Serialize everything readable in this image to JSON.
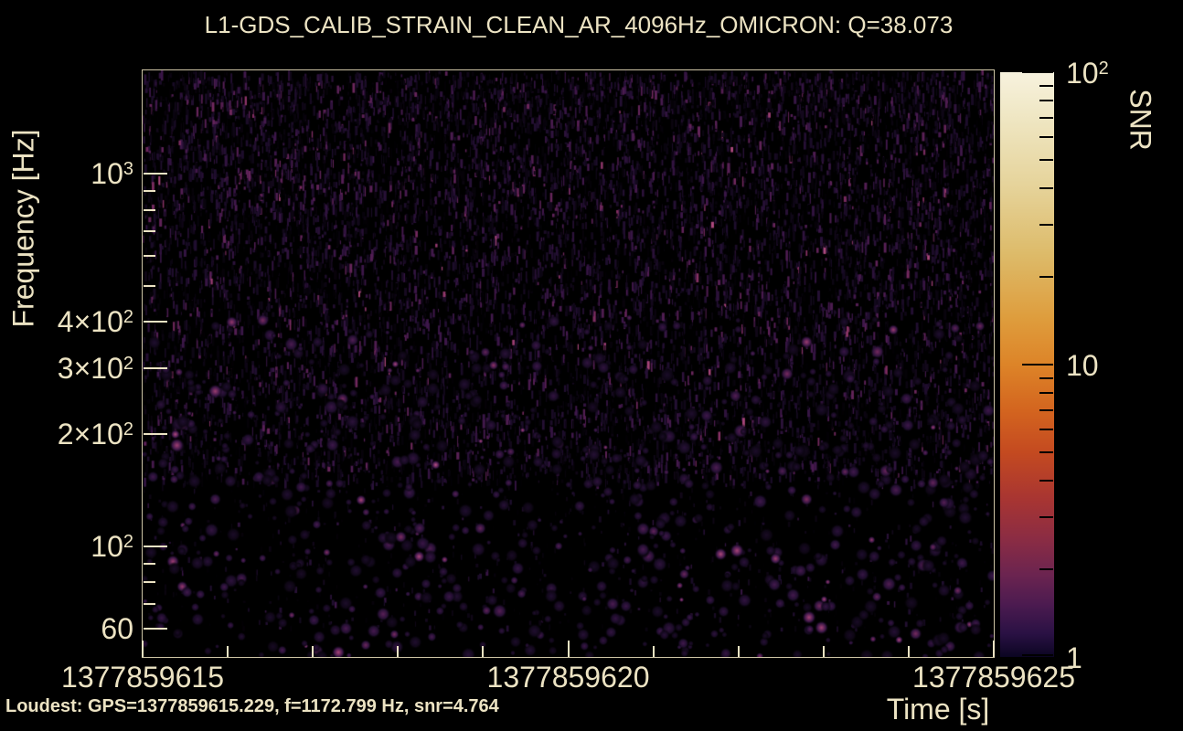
{
  "chart_data": {
    "type": "heatmap",
    "subtype": "omicron-qscan-spectrogram",
    "title": "L1-GDS_CALIB_STRAIN_CLEAN_AR_4096Hz_OMICRON: Q=38.073",
    "xlabel": "Time [s]",
    "ylabel": "Frequency [Hz]",
    "colorbar_label": "SNR",
    "x_range_gps": [
      1377859615,
      1377859625
    ],
    "x_major_ticks": [
      1377859615,
      1377859620,
      1377859625
    ],
    "x_tick_labels": [
      "1377859615",
      "1377859620",
      "1377859625"
    ],
    "x_minor_ticks": [
      1377859616,
      1377859617,
      1377859618,
      1377859619,
      1377859621,
      1377859622,
      1377859623,
      1377859624
    ],
    "y_scale": "log",
    "y_range_hz": [
      50.5,
      1892
    ],
    "y_tick_labels": [
      {
        "value": 1000,
        "pre": "",
        "base": "10",
        "exp": "3"
      },
      {
        "value": 400,
        "pre": "4×",
        "base": "10",
        "exp": "2"
      },
      {
        "value": 300,
        "pre": "3×",
        "base": "10",
        "exp": "2"
      },
      {
        "value": 200,
        "pre": "2×",
        "base": "10",
        "exp": "2"
      },
      {
        "value": 100,
        "pre": "",
        "base": "10",
        "exp": "2"
      },
      {
        "value": 60,
        "text": "60"
      }
    ],
    "y_minor_ticks_hz": [
      70,
      80,
      90,
      500,
      600,
      700,
      800,
      900
    ],
    "snr_scale": "log",
    "snr_range": [
      1,
      100
    ],
    "colorbar_major_ticks": [
      1,
      10,
      100
    ],
    "colorbar_minor_ticks": [
      2,
      3,
      4,
      5,
      6,
      7,
      8,
      9,
      20,
      30,
      40,
      50,
      60,
      70,
      80,
      90
    ],
    "colorbar_tick_labels": [
      {
        "value": 100,
        "pre": "",
        "base": "10",
        "exp": "2"
      },
      {
        "value": 10,
        "text": "10"
      },
      {
        "value": 1,
        "text": "1"
      }
    ],
    "loudest_annotation": "Loudest: GPS=1377859615.229, f=1172.799 Hz, snr=4.764",
    "loudest": {
      "gps": 1377859615.229,
      "frequency_hz": 1172.799,
      "snr": 4.764
    },
    "colors": {
      "background": "#000000",
      "text": "#ece3c3",
      "axis_tick": "#ece3c3",
      "colorbar_tick": "#000000"
    },
    "colormap_stops": [
      {
        "pos": 0.0,
        "color": "#0b0522"
      },
      {
        "pos": 0.04,
        "color": "#2a1144"
      },
      {
        "pos": 0.09,
        "color": "#4c1b50"
      },
      {
        "pos": 0.14,
        "color": "#6b2450"
      },
      {
        "pos": 0.2,
        "color": "#8a2c44"
      },
      {
        "pos": 0.27,
        "color": "#a83532"
      },
      {
        "pos": 0.35,
        "color": "#c44a20"
      },
      {
        "pos": 0.42,
        "color": "#d3641f"
      },
      {
        "pos": 0.5,
        "color": "#dd8428"
      },
      {
        "pos": 0.58,
        "color": "#de9d3d"
      },
      {
        "pos": 0.69,
        "color": "#ddbb6a"
      },
      {
        "pos": 0.81,
        "color": "#e6d49c"
      },
      {
        "pos": 0.92,
        "color": "#efe6c2"
      },
      {
        "pos": 1.0,
        "color": "#f7f2de"
      }
    ],
    "data_summary": "Background noise only: dense faint purple vertical speckle streaks above ~300 Hz, sparse soft purple blobs below ~300 Hz, no loud trigger (max SNR ~4.8)"
  }
}
